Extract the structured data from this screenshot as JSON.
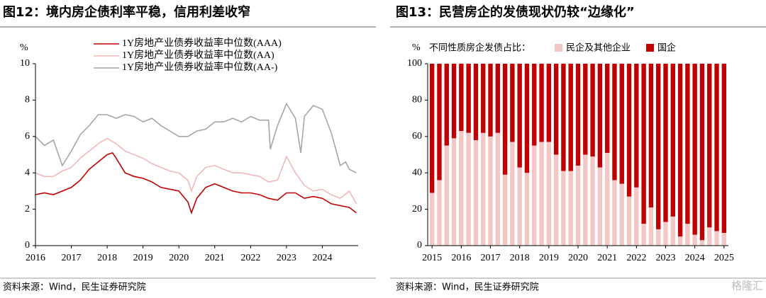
{
  "chart_data": [
    {
      "type": "line",
      "title": "图12：境内房企债利率平稳，信用利差收窄",
      "y_unit": "%",
      "source": "资料来源：Wind，民生证券研究院",
      "xlim": [
        2016,
        2025
      ],
      "xticks": [
        2016,
        2017,
        2018,
        2019,
        2020,
        2021,
        2022,
        2023,
        2024
      ],
      "ylim": [
        0,
        10
      ],
      "yticks": [
        0,
        2,
        4,
        6,
        8,
        10
      ],
      "series": [
        {
          "name": "1Y房地产业债券收益率中位数(AAA)",
          "color": "#c00000",
          "x": [
            2016,
            2016.25,
            2016.5,
            2016.75,
            2017,
            2017.25,
            2017.5,
            2017.75,
            2018,
            2018.15,
            2018.25,
            2018.5,
            2018.75,
            2019,
            2019.25,
            2019.5,
            2019.75,
            2020,
            2020.25,
            2020.35,
            2020.5,
            2020.75,
            2021,
            2021.25,
            2021.5,
            2021.75,
            2022,
            2022.25,
            2022.5,
            2022.75,
            2023,
            2023.25,
            2023.5,
            2023.75,
            2024,
            2024.25,
            2024.5,
            2024.75,
            2024.95
          ],
          "values": [
            2.8,
            2.9,
            2.8,
            3.0,
            3.2,
            3.6,
            4.2,
            4.6,
            5.0,
            5.1,
            4.8,
            4.0,
            3.8,
            3.7,
            3.5,
            3.2,
            3.1,
            3.0,
            2.4,
            1.8,
            2.6,
            3.2,
            3.4,
            3.2,
            3.0,
            2.9,
            2.9,
            2.8,
            2.6,
            2.5,
            2.9,
            2.9,
            2.6,
            2.7,
            2.6,
            2.3,
            2.2,
            2.1,
            1.8
          ]
        },
        {
          "name": "1Y房地产业债券收益率中位数(AA)",
          "color": "#f0b8b8",
          "x": [
            2016,
            2016.25,
            2016.5,
            2016.75,
            2017,
            2017.25,
            2017.5,
            2017.75,
            2018,
            2018.25,
            2018.5,
            2018.75,
            2019,
            2019.25,
            2019.5,
            2019.75,
            2020,
            2020.25,
            2020.35,
            2020.5,
            2020.75,
            2021,
            2021.25,
            2021.5,
            2021.75,
            2022,
            2022.25,
            2022.5,
            2022.75,
            2023,
            2023.25,
            2023.5,
            2023.75,
            2024,
            2024.25,
            2024.5,
            2024.75,
            2024.95
          ],
          "values": [
            4.0,
            3.8,
            3.8,
            4.1,
            4.3,
            4.8,
            5.2,
            5.6,
            5.9,
            5.6,
            5.2,
            5.0,
            4.8,
            4.5,
            4.3,
            4.1,
            4.0,
            3.6,
            3.0,
            3.8,
            4.3,
            4.4,
            4.2,
            4.0,
            4.0,
            3.9,
            3.8,
            3.5,
            3.6,
            4.9,
            4.0,
            3.3,
            3.0,
            3.1,
            2.8,
            2.6,
            3.0,
            2.3
          ]
        },
        {
          "name": "1Y房地产业债券收益率中位数(AA-)",
          "color": "#a6a6a6",
          "x": [
            2016,
            2016.25,
            2016.5,
            2016.75,
            2017,
            2017.25,
            2017.5,
            2017.75,
            2018,
            2018.25,
            2018.5,
            2018.75,
            2019,
            2019.25,
            2019.5,
            2019.75,
            2020,
            2020.25,
            2020.5,
            2020.75,
            2021,
            2021.25,
            2021.5,
            2021.75,
            2022,
            2022.25,
            2022.5,
            2022.55,
            2022.75,
            2023,
            2023.25,
            2023.4,
            2023.5,
            2023.75,
            2024,
            2024.25,
            2024.5,
            2024.65,
            2024.75,
            2024.95
          ],
          "values": [
            6.0,
            5.5,
            5.8,
            4.4,
            5.2,
            6.1,
            6.6,
            7.2,
            7.2,
            7.0,
            7.2,
            7.1,
            6.8,
            7.0,
            6.6,
            6.3,
            6.0,
            6.0,
            6.3,
            6.4,
            6.8,
            6.8,
            7.0,
            6.8,
            7.1,
            6.9,
            6.9,
            5.3,
            6.6,
            7.8,
            7.0,
            5.1,
            7.1,
            7.7,
            7.5,
            6.2,
            4.4,
            4.6,
            4.2,
            4.0
          ]
        }
      ]
    },
    {
      "type": "stacked_bar",
      "title": "图13：民营房企的发债现状仍较“边缘化”",
      "y_unit": "%",
      "legend_title": "不同性质房企发债占比：",
      "source": "资料来源：Wind，民生证券研究院",
      "xlim": [
        2014.85,
        2025.15
      ],
      "xticks": [
        2015,
        2016,
        2017,
        2018,
        2019,
        2020,
        2021,
        2022,
        2023,
        2024,
        2025
      ],
      "ylim": [
        0,
        100
      ],
      "yticks": [
        0,
        20,
        40,
        60,
        80,
        100
      ],
      "x": [
        2015,
        2015.25,
        2015.5,
        2015.75,
        2016,
        2016.25,
        2016.5,
        2016.75,
        2017,
        2017.25,
        2017.5,
        2017.75,
        2018,
        2018.25,
        2018.5,
        2018.75,
        2019,
        2019.25,
        2019.5,
        2019.75,
        2020,
        2020.25,
        2020.5,
        2020.75,
        2021,
        2021.25,
        2021.5,
        2021.75,
        2022,
        2022.25,
        2022.5,
        2022.75,
        2023,
        2023.25,
        2023.5,
        2023.75,
        2024,
        2024.25,
        2024.5,
        2024.75,
        2025
      ],
      "series": [
        {
          "name": "民企及其他企业",
          "color": "#f4c7c7",
          "values": [
            29,
            36,
            55,
            59,
            63,
            62,
            58,
            62,
            60,
            62,
            39,
            57,
            43,
            40,
            55,
            57,
            57,
            50,
            41,
            41,
            44,
            50,
            49,
            43,
            51,
            36,
            34,
            27,
            32,
            12,
            21,
            9,
            13,
            16,
            5,
            12,
            6,
            3,
            10,
            8,
            7
          ]
        },
        {
          "name": "国企",
          "color": "#c00000",
          "values": [
            71,
            64,
            45,
            41,
            37,
            38,
            42,
            38,
            40,
            38,
            61,
            43,
            57,
            60,
            45,
            43,
            43,
            50,
            59,
            59,
            56,
            50,
            51,
            57,
            49,
            64,
            66,
            73,
            68,
            88,
            79,
            91,
            87,
            84,
            95,
            88,
            94,
            97,
            90,
            92,
            93
          ]
        }
      ]
    }
  ],
  "watermark": "格隆汇"
}
